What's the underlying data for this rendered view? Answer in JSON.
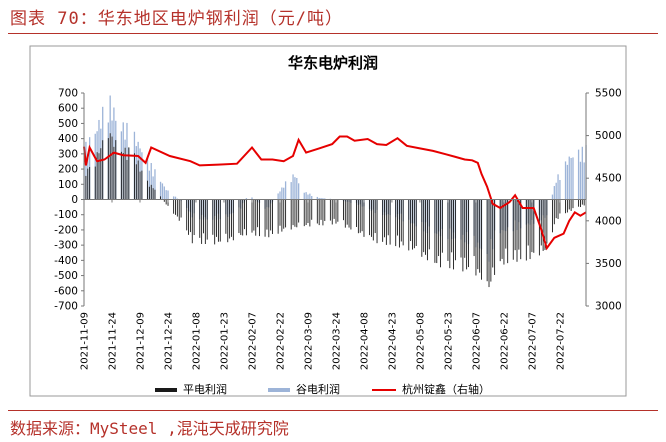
{
  "figure": {
    "caption": "图表 70：华东地区电炉钢利润（元/吨）",
    "source": "数据来源：MySteel ,混沌天成研究院",
    "accent_color": "#b5312a"
  },
  "chart_data": {
    "type": "bar",
    "title": "华东电炉利润",
    "legend_position": "bottom",
    "grid": false,
    "x_axis": {
      "start": "2021-11-09",
      "end": "2022-08-05",
      "tick_labels": [
        "2021-11-09",
        "2021-11-24",
        "2021-12-09",
        "2021-12-24",
        "2022-01-08",
        "2022-01-23",
        "2022-02-07",
        "2022-02-22",
        "2022-03-09",
        "2022-03-24",
        "2022-04-08",
        "2022-04-23",
        "2022-05-08",
        "2022-05-23",
        "2022-06-07",
        "2022-06-22",
        "2022-07-07",
        "2022-07-22"
      ]
    },
    "y_left": {
      "min": -700,
      "max": 700,
      "step": 100
    },
    "y_right": {
      "min": 3000,
      "max": 5500,
      "step": 500
    },
    "series": [
      {
        "name": "平电利润",
        "type": "bar",
        "axis": "left",
        "color": "#1a1a1a",
        "keypoints": [
          [
            "2021-11-09",
            150
          ],
          [
            "2021-11-15",
            250
          ],
          [
            "2021-11-22",
            420
          ],
          [
            "2021-11-28",
            300
          ],
          [
            "2021-12-05",
            300
          ],
          [
            "2021-12-12",
            120
          ],
          [
            "2021-12-18",
            50
          ],
          [
            "2021-12-23",
            -30
          ],
          [
            "2022-01-01",
            -150
          ],
          [
            "2022-01-06",
            -250
          ],
          [
            "2022-01-15",
            -260
          ],
          [
            "2022-01-25",
            -250
          ],
          [
            "2022-02-05",
            -200
          ],
          [
            "2022-02-15",
            -220
          ],
          [
            "2022-02-25",
            -180
          ],
          [
            "2022-03-05",
            -160
          ],
          [
            "2022-03-15",
            -150
          ],
          [
            "2022-03-25",
            -140
          ],
          [
            "2022-04-05",
            -200
          ],
          [
            "2022-04-15",
            -250
          ],
          [
            "2022-04-25",
            -270
          ],
          [
            "2022-05-05",
            -300
          ],
          [
            "2022-05-15",
            -380
          ],
          [
            "2022-05-25",
            -400
          ],
          [
            "2022-06-05",
            -420
          ],
          [
            "2022-06-10",
            -470
          ],
          [
            "2022-06-13",
            -560
          ],
          [
            "2022-06-18",
            -400
          ],
          [
            "2022-06-25",
            -360
          ],
          [
            "2022-07-05",
            -350
          ],
          [
            "2022-07-15",
            -300
          ],
          [
            "2022-07-20",
            -120
          ],
          [
            "2022-07-27",
            -70
          ],
          [
            "2022-08-05",
            -30
          ]
        ]
      },
      {
        "name": "谷电利润",
        "type": "bar",
        "axis": "left",
        "color": "#9db4d8",
        "keypoints": [
          [
            "2021-11-09",
            300
          ],
          [
            "2021-11-15",
            400
          ],
          [
            "2021-11-22",
            600
          ],
          [
            "2021-11-28",
            450
          ],
          [
            "2021-12-05",
            400
          ],
          [
            "2021-12-12",
            250
          ],
          [
            "2021-12-18",
            150
          ],
          [
            "2021-12-23",
            60
          ],
          [
            "2022-01-01",
            -20
          ],
          [
            "2022-01-06",
            -100
          ],
          [
            "2022-01-15",
            -120
          ],
          [
            "2022-01-25",
            -100
          ],
          [
            "2022-02-01",
            -50
          ],
          [
            "2022-02-05",
            30
          ],
          [
            "2022-02-15",
            -60
          ],
          [
            "2022-02-25",
            100
          ],
          [
            "2022-03-02",
            150
          ],
          [
            "2022-03-06",
            50
          ],
          [
            "2022-03-15",
            10
          ],
          [
            "2022-03-25",
            0
          ],
          [
            "2022-04-05",
            -30
          ],
          [
            "2022-04-15",
            -80
          ],
          [
            "2022-04-25",
            -100
          ],
          [
            "2022-05-05",
            -150
          ],
          [
            "2022-05-15",
            -200
          ],
          [
            "2022-05-25",
            -220
          ],
          [
            "2022-06-05",
            -250
          ],
          [
            "2022-06-10",
            -300
          ],
          [
            "2022-06-13",
            -380
          ],
          [
            "2022-06-18",
            -200
          ],
          [
            "2022-06-25",
            -180
          ],
          [
            "2022-07-05",
            -150
          ],
          [
            "2022-07-15",
            -100
          ],
          [
            "2022-07-20",
            120
          ],
          [
            "2022-07-27",
            250
          ],
          [
            "2022-08-05",
            300
          ]
        ]
      },
      {
        "name": "杭州锭鑫（右轴）",
        "type": "line",
        "axis": "right",
        "color": "#e60000",
        "keypoints": [
          [
            "2021-11-09",
            4870
          ],
          [
            "2021-11-10",
            4650
          ],
          [
            "2021-11-12",
            4860
          ],
          [
            "2021-11-16",
            4700
          ],
          [
            "2021-11-20",
            4720
          ],
          [
            "2021-11-25",
            4800
          ],
          [
            "2021-11-30",
            4770
          ],
          [
            "2021-12-08",
            4760
          ],
          [
            "2021-12-12",
            4680
          ],
          [
            "2021-12-15",
            4860
          ],
          [
            "2021-12-25",
            4760
          ],
          [
            "2022-01-05",
            4700
          ],
          [
            "2022-01-10",
            4650
          ],
          [
            "2022-01-20",
            4660
          ],
          [
            "2022-01-30",
            4670
          ],
          [
            "2022-02-07",
            4860
          ],
          [
            "2022-02-12",
            4720
          ],
          [
            "2022-02-18",
            4720
          ],
          [
            "2022-02-24",
            4700
          ],
          [
            "2022-03-01",
            4760
          ],
          [
            "2022-03-04",
            4950
          ],
          [
            "2022-03-08",
            4800
          ],
          [
            "2022-03-15",
            4850
          ],
          [
            "2022-03-22",
            4900
          ],
          [
            "2022-03-26",
            4990
          ],
          [
            "2022-03-30",
            4990
          ],
          [
            "2022-04-03",
            4940
          ],
          [
            "2022-04-10",
            4960
          ],
          [
            "2022-04-15",
            4900
          ],
          [
            "2022-04-20",
            4890
          ],
          [
            "2022-04-26",
            4970
          ],
          [
            "2022-05-01",
            4880
          ],
          [
            "2022-05-08",
            4850
          ],
          [
            "2022-05-15",
            4820
          ],
          [
            "2022-05-22",
            4780
          ],
          [
            "2022-05-27",
            4750
          ],
          [
            "2022-06-01",
            4720
          ],
          [
            "2022-06-05",
            4710
          ],
          [
            "2022-06-08",
            4680
          ],
          [
            "2022-06-10",
            4550
          ],
          [
            "2022-06-13",
            4400
          ],
          [
            "2022-06-16",
            4200
          ],
          [
            "2022-06-20",
            4150
          ],
          [
            "2022-06-25",
            4220
          ],
          [
            "2022-06-28",
            4300
          ],
          [
            "2022-07-02",
            4150
          ],
          [
            "2022-07-08",
            4150
          ],
          [
            "2022-07-12",
            3900
          ],
          [
            "2022-07-15",
            3680
          ],
          [
            "2022-07-19",
            3800
          ],
          [
            "2022-07-24",
            3850
          ],
          [
            "2022-07-27",
            4000
          ],
          [
            "2022-07-30",
            4100
          ],
          [
            "2022-08-02",
            4060
          ],
          [
            "2022-08-05",
            4100
          ]
        ]
      }
    ]
  }
}
